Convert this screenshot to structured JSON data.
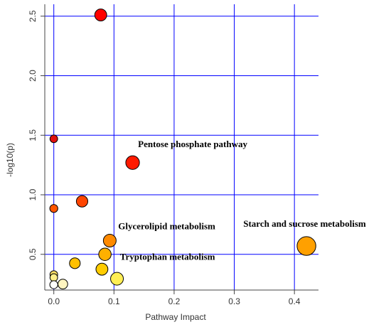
{
  "chart_data": {
    "type": "scatter",
    "title": "",
    "xlabel": "Pathway Impact",
    "ylabel": "-log10(p)",
    "xlim": [
      -0.015,
      0.44
    ],
    "ylim": [
      0.2,
      2.6
    ],
    "xticks": [
      0.0,
      0.1,
      0.2,
      0.3,
      0.4
    ],
    "yticks": [
      0.5,
      1.0,
      1.5,
      2.0,
      2.5
    ],
    "xtick_labels": [
      "0.0",
      "0.1",
      "0.2",
      "0.3",
      "0.4"
    ],
    "ytick_labels": [
      "0.5",
      "1.0",
      "1.5",
      "2.0",
      "2.5"
    ],
    "grid": true,
    "grid_color": "#0000ff",
    "legend": "none",
    "points": [
      {
        "x": 0.078,
        "y": 2.51,
        "size": 0.45,
        "color": "#ff0000"
      },
      {
        "x": 0.0,
        "y": 1.47,
        "size": 0.2,
        "color": "#e01010"
      },
      {
        "x": 0.131,
        "y": 1.27,
        "size": 0.55,
        "color": "#ff1a00"
      },
      {
        "x": 0.047,
        "y": 0.945,
        "size": 0.42,
        "color": "#ff4500"
      },
      {
        "x": 0.0,
        "y": 0.885,
        "size": 0.22,
        "color": "#ff5500"
      },
      {
        "x": 0.093,
        "y": 0.615,
        "size": 0.5,
        "color": "#ff8a00"
      },
      {
        "x": 0.42,
        "y": 0.57,
        "size": 0.85,
        "color": "#ffa000"
      },
      {
        "x": 0.085,
        "y": 0.5,
        "size": 0.48,
        "color": "#ffb000"
      },
      {
        "x": 0.035,
        "y": 0.425,
        "size": 0.38,
        "color": "#ffc000"
      },
      {
        "x": 0.08,
        "y": 0.375,
        "size": 0.45,
        "color": "#ffcc00"
      },
      {
        "x": 0.0,
        "y": 0.33,
        "size": 0.2,
        "color": "#ffe066"
      },
      {
        "x": 0.0,
        "y": 0.305,
        "size": 0.2,
        "color": "#ffee88"
      },
      {
        "x": 0.105,
        "y": 0.295,
        "size": 0.5,
        "color": "#ffee55"
      },
      {
        "x": 0.015,
        "y": 0.25,
        "size": 0.32,
        "color": "#fff5c0"
      },
      {
        "x": 0.0,
        "y": 0.245,
        "size": 0.22,
        "color": "#ffffff"
      }
    ],
    "annotations": [
      {
        "text": "Pentose phosphate pathway",
        "x": 0.14,
        "y": 1.4
      },
      {
        "text": "Glycerolipid metabolism",
        "x": 0.107,
        "y": 0.71
      },
      {
        "text": "Starch and sucrose metabolism",
        "x": 0.315,
        "y": 0.73
      },
      {
        "text": "Tryptophan metabolism",
        "x": 0.11,
        "y": 0.455
      }
    ]
  }
}
